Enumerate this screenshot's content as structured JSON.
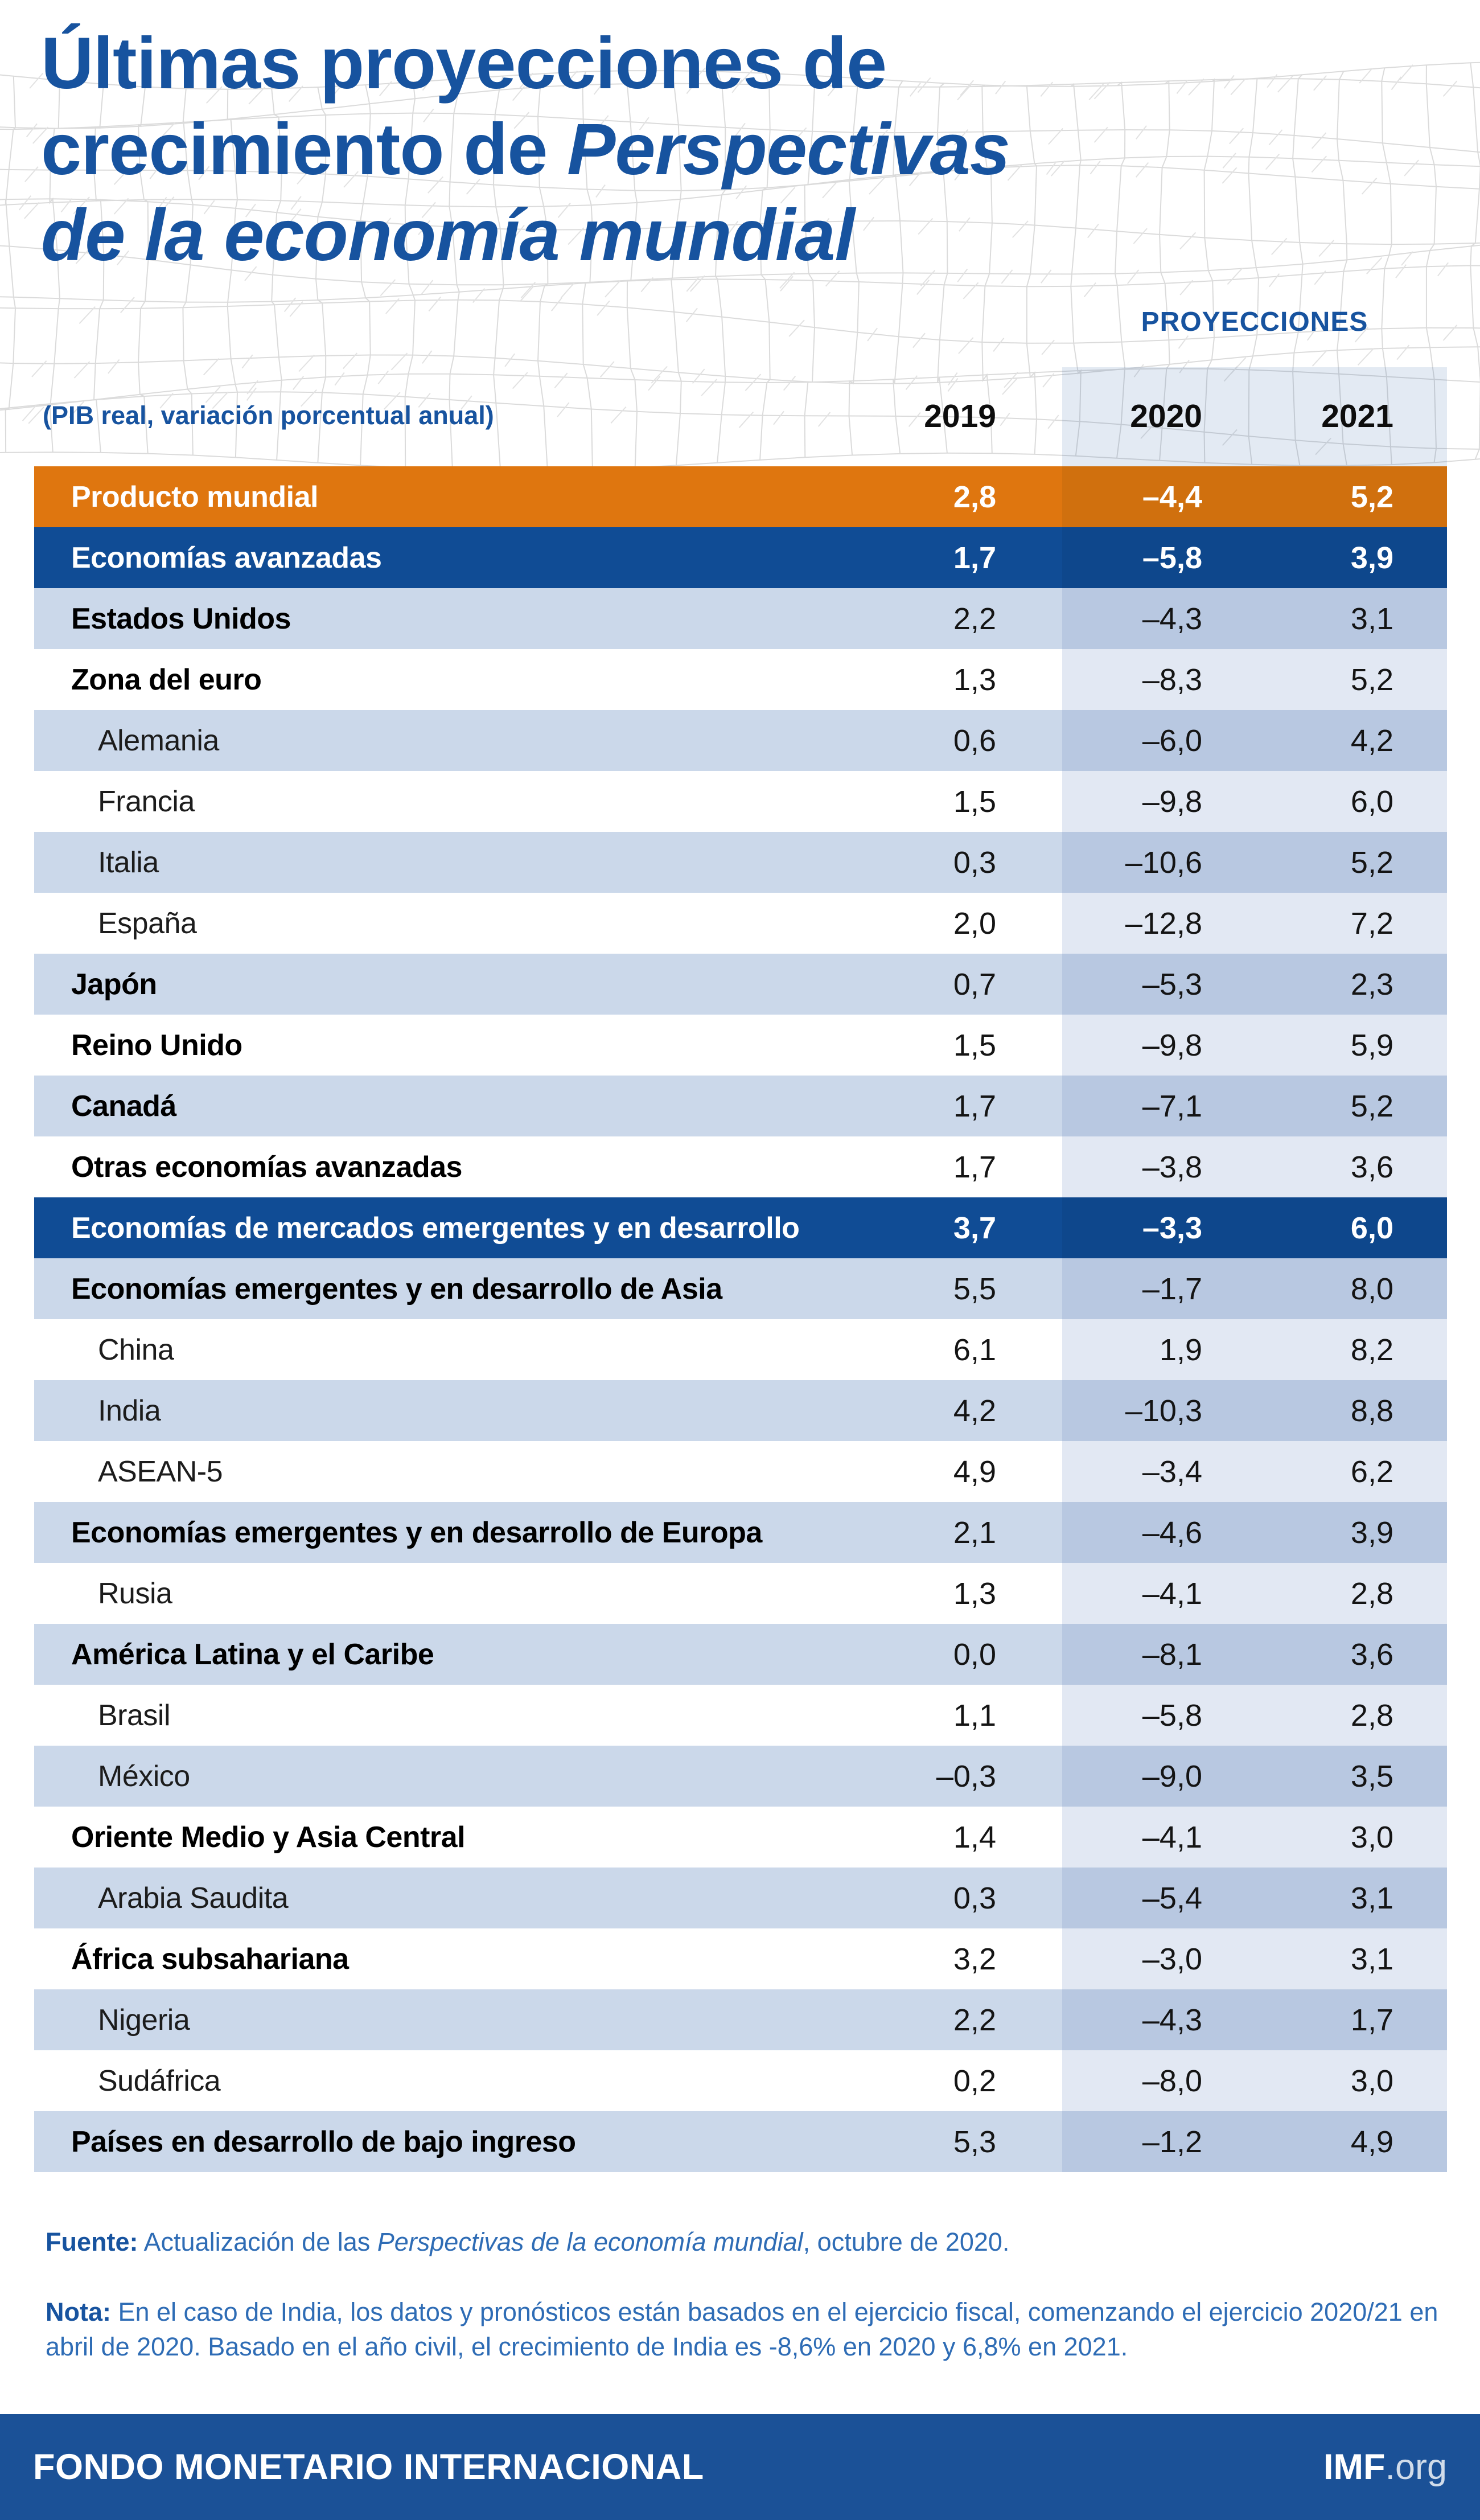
{
  "header": {
    "title_line1": "Últimas proyecciones de",
    "title_line2_regular": "crecimiento de ",
    "title_line2_italic": "Perspectivas",
    "title_line3_italic": "de la economía mundial",
    "projections_label": "PROYECCIONES",
    "unit_label": "(PIB real, variación porcentual anual)",
    "years": [
      "2019",
      "2020",
      "2021"
    ]
  },
  "table": {
    "rows": [
      {
        "label": "Producto mundial",
        "style": "orange",
        "indent": false,
        "values": [
          "2,8",
          "–4,4",
          "5,2"
        ]
      },
      {
        "label": "Economías avanzadas",
        "style": "navy",
        "indent": false,
        "values": [
          "1,7",
          "–5,8",
          "3,9"
        ]
      },
      {
        "label": "Estados Unidos",
        "style": "blue",
        "indent": false,
        "values": [
          "2,2",
          "–4,3",
          "3,1"
        ]
      },
      {
        "label": "Zona del euro",
        "style": "white",
        "indent": false,
        "values": [
          "1,3",
          "–8,3",
          "5,2"
        ]
      },
      {
        "label": "Alemania",
        "style": "blue",
        "indent": true,
        "values": [
          "0,6",
          "–6,0",
          "4,2"
        ]
      },
      {
        "label": "Francia",
        "style": "white",
        "indent": true,
        "values": [
          "1,5",
          "–9,8",
          "6,0"
        ]
      },
      {
        "label": "Italia",
        "style": "blue",
        "indent": true,
        "values": [
          "0,3",
          "–10,6",
          "5,2"
        ]
      },
      {
        "label": "España",
        "style": "white",
        "indent": true,
        "values": [
          "2,0",
          "–12,8",
          "7,2"
        ]
      },
      {
        "label": "Japón",
        "style": "blue",
        "indent": false,
        "values": [
          "0,7",
          "–5,3",
          "2,3"
        ]
      },
      {
        "label": "Reino Unido",
        "style": "white",
        "indent": false,
        "values": [
          "1,5",
          "–9,8",
          "5,9"
        ]
      },
      {
        "label": "Canadá",
        "style": "blue",
        "indent": false,
        "values": [
          "1,7",
          "–7,1",
          "5,2"
        ]
      },
      {
        "label": "Otras economías avanzadas",
        "style": "white",
        "indent": false,
        "values": [
          "1,7",
          "–3,8",
          "3,6"
        ]
      },
      {
        "label": "Economías de mercados emergentes y en desarrollo",
        "style": "navy",
        "indent": false,
        "values": [
          "3,7",
          "–3,3",
          "6,0"
        ]
      },
      {
        "label": "Economías emergentes y en desarrollo de Asia",
        "style": "blue",
        "indent": false,
        "values": [
          "5,5",
          "–1,7",
          "8,0"
        ]
      },
      {
        "label": "China",
        "style": "white",
        "indent": true,
        "values": [
          "6,1",
          "1,9",
          "8,2"
        ]
      },
      {
        "label": "India",
        "style": "blue",
        "indent": true,
        "values": [
          "4,2",
          "–10,3",
          "8,8"
        ]
      },
      {
        "label": "ASEAN-5",
        "style": "white",
        "indent": true,
        "values": [
          "4,9",
          "–3,4",
          "6,2"
        ]
      },
      {
        "label": "Economías emergentes y en desarrollo de Europa",
        "style": "blue",
        "indent": false,
        "values": [
          "2,1",
          "–4,6",
          "3,9"
        ]
      },
      {
        "label": "Rusia",
        "style": "white",
        "indent": true,
        "values": [
          "1,3",
          "–4,1",
          "2,8"
        ]
      },
      {
        "label": "América Latina y el Caribe",
        "style": "blue",
        "indent": false,
        "values": [
          "0,0",
          "–8,1",
          "3,6"
        ]
      },
      {
        "label": "Brasil",
        "style": "white",
        "indent": true,
        "values": [
          "1,1",
          "–5,8",
          "2,8"
        ]
      },
      {
        "label": "México",
        "style": "blue",
        "indent": true,
        "values": [
          "–0,3",
          "–9,0",
          "3,5"
        ]
      },
      {
        "label": "Oriente Medio y Asia Central",
        "style": "white",
        "indent": false,
        "values": [
          "1,4",
          "–4,1",
          "3,0"
        ]
      },
      {
        "label": "Arabia Saudita",
        "style": "blue",
        "indent": true,
        "values": [
          "0,3",
          "–5,4",
          "3,1"
        ]
      },
      {
        "label": "África subsahariana",
        "style": "white",
        "indent": false,
        "values": [
          "3,2",
          "–3,0",
          "3,1"
        ]
      },
      {
        "label": "Nigeria",
        "style": "blue",
        "indent": true,
        "values": [
          "2,2",
          "–4,3",
          "1,7"
        ]
      },
      {
        "label": "Sudáfrica",
        "style": "white",
        "indent": true,
        "values": [
          "0,2",
          "–8,0",
          "3,0"
        ]
      },
      {
        "label": "Países en desarrollo de bajo ingreso",
        "style": "blue",
        "indent": false,
        "values": [
          "5,3",
          "–1,2",
          "4,9"
        ]
      }
    ]
  },
  "source": {
    "label": "Fuente:",
    "prefix": " Actualización de las ",
    "italic": "Perspectivas de la economía mundial",
    "suffix": ", octubre de 2020."
  },
  "note": {
    "label": "Nota:",
    "text": " En el caso de India, los datos y pronósticos están basados en el ejercicio fiscal, comenzando el ejercicio 2020/21 en abril de 2020. Basado en el año civil, el crecimiento de India es -8,6% en 2020 y 6,8% en 2021."
  },
  "footer": {
    "left": "FONDO MONETARIO INTERNACIONAL",
    "right_bold": "IMF",
    "right_light": ".org"
  },
  "colors": {
    "brand_blue": "#17539F",
    "navy_row": "#104C95",
    "orange_row": "#DF760F",
    "light_blue_row": "#CBD8EA",
    "projection_band_on_white": "#E2E8F3",
    "projection_band_on_blue": "#B8C8E1",
    "footer_blue": "#1B5197",
    "note_blue": "#2E6CB5"
  },
  "chart_data": {
    "type": "table",
    "title": "Últimas proyecciones de crecimiento de Perspectivas de la economía mundial",
    "unit": "(PIB real, variación porcentual anual)",
    "columns": [
      "2019",
      "2020",
      "2021"
    ],
    "projection_columns": [
      "2020",
      "2021"
    ],
    "rows": [
      {
        "label": "Producto mundial",
        "values": [
          2.8,
          -4.4,
          5.2
        ]
      },
      {
        "label": "Economías avanzadas",
        "values": [
          1.7,
          -5.8,
          3.9
        ]
      },
      {
        "label": "Estados Unidos",
        "values": [
          2.2,
          -4.3,
          3.1
        ]
      },
      {
        "label": "Zona del euro",
        "values": [
          1.3,
          -8.3,
          5.2
        ]
      },
      {
        "label": "Alemania",
        "values": [
          0.6,
          -6.0,
          4.2
        ]
      },
      {
        "label": "Francia",
        "values": [
          1.5,
          -9.8,
          6.0
        ]
      },
      {
        "label": "Italia",
        "values": [
          0.3,
          -10.6,
          5.2
        ]
      },
      {
        "label": "España",
        "values": [
          2.0,
          -12.8,
          7.2
        ]
      },
      {
        "label": "Japón",
        "values": [
          0.7,
          -5.3,
          2.3
        ]
      },
      {
        "label": "Reino Unido",
        "values": [
          1.5,
          -9.8,
          5.9
        ]
      },
      {
        "label": "Canadá",
        "values": [
          1.7,
          -7.1,
          5.2
        ]
      },
      {
        "label": "Otras economías avanzadas",
        "values": [
          1.7,
          -3.8,
          3.6
        ]
      },
      {
        "label": "Economías de mercados emergentes y en desarrollo",
        "values": [
          3.7,
          -3.3,
          6.0
        ]
      },
      {
        "label": "Economías emergentes y en desarrollo de Asia",
        "values": [
          5.5,
          -1.7,
          8.0
        ]
      },
      {
        "label": "China",
        "values": [
          6.1,
          1.9,
          8.2
        ]
      },
      {
        "label": "India",
        "values": [
          4.2,
          -10.3,
          8.8
        ]
      },
      {
        "label": "ASEAN-5",
        "values": [
          4.9,
          -3.4,
          6.2
        ]
      },
      {
        "label": "Economías emergentes y en desarrollo de Europa",
        "values": [
          2.1,
          -4.6,
          3.9
        ]
      },
      {
        "label": "Rusia",
        "values": [
          1.3,
          -4.1,
          2.8
        ]
      },
      {
        "label": "América Latina y el Caribe",
        "values": [
          0.0,
          -8.1,
          3.6
        ]
      },
      {
        "label": "Brasil",
        "values": [
          1.1,
          -5.8,
          2.8
        ]
      },
      {
        "label": "México",
        "values": [
          -0.3,
          -9.0,
          3.5
        ]
      },
      {
        "label": "Oriente Medio y Asia Central",
        "values": [
          1.4,
          -4.1,
          3.0
        ]
      },
      {
        "label": "Arabia Saudita",
        "values": [
          0.3,
          -5.4,
          3.1
        ]
      },
      {
        "label": "África subsahariana",
        "values": [
          3.2,
          -3.0,
          3.1
        ]
      },
      {
        "label": "Nigeria",
        "values": [
          2.2,
          -4.3,
          1.7
        ]
      },
      {
        "label": "Sudáfrica",
        "values": [
          0.2,
          -8.0,
          3.0
        ]
      },
      {
        "label": "Países en desarrollo de bajo ingreso",
        "values": [
          5.3,
          -1.2,
          4.9
        ]
      }
    ]
  }
}
